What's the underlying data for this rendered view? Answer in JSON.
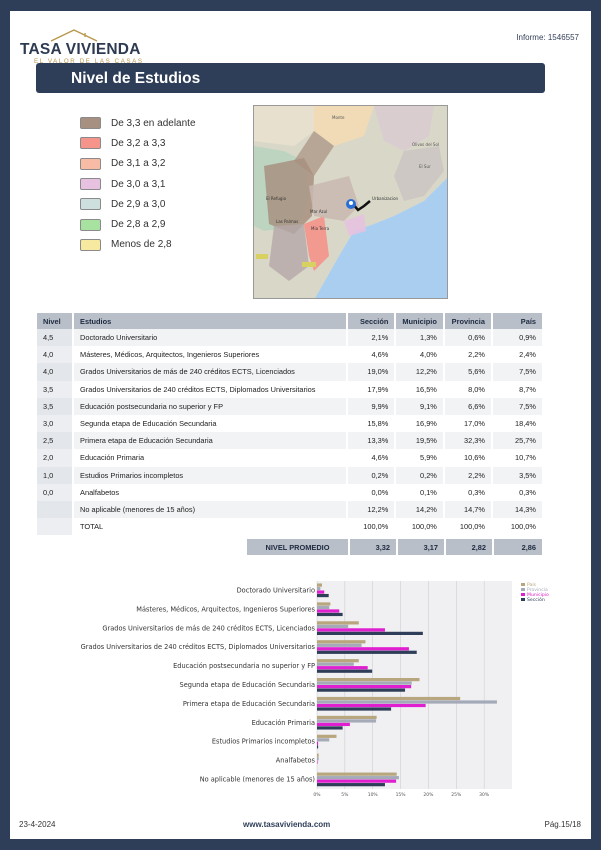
{
  "header": {
    "logo_title": "TASA VIVIENDA",
    "logo_subtitle": "EL VALOR DE LAS CASAS",
    "report_id": "Informe: 1546557",
    "section_title": "Nivel de Estudios"
  },
  "legend": [
    {
      "label": "De 3,3 en adelante",
      "color": "#a89080"
    },
    {
      "label": "De 3,2 a 3,3",
      "color": "#f4948a"
    },
    {
      "label": "De 3,1 a 3,2",
      "color": "#f8bca6"
    },
    {
      "label": "De 3,0 a 3,1",
      "color": "#e6c2e0"
    },
    {
      "label": "De 2,9 a 3,0",
      "color": "#cde0de"
    },
    {
      "label": "De 2,8 a 2,9",
      "color": "#a8e2a0"
    },
    {
      "label": "Menos de 2,8",
      "color": "#f7e9a0"
    }
  ],
  "map": {
    "labels": [
      "Monte",
      "Olivos del Sol",
      "El Sur",
      "El Refugio",
      "Urbanizacion Torre Bermeja",
      "Las Palmas",
      "Mar Azul",
      "Mia Terra Forma",
      "El Sol"
    ]
  },
  "table": {
    "headers": [
      "Nivel",
      "Estudios",
      "Sección",
      "Municipio",
      "Provincia",
      "País"
    ],
    "rows": [
      [
        "4,5",
        "Doctorado Universitario",
        "2,1%",
        "1,3%",
        "0,6%",
        "0,9%"
      ],
      [
        "4,0",
        "Másteres, Médicos, Arquitectos,  Ingenieros Superiores",
        "4,6%",
        "4,0%",
        "2,2%",
        "2,4%"
      ],
      [
        "4,0",
        "Grados Universitarios de más de 240 créditos ECTS, Licenciados",
        "19,0%",
        "12,2%",
        "5,6%",
        "7,5%"
      ],
      [
        "3,5",
        "Grados Universitarios de 240 créditos ECTS, Diplomados Universitarios",
        "17,9%",
        "16,5%",
        "8,0%",
        "8,7%"
      ],
      [
        "3,5",
        "Educación postsecundaria no superior y FP",
        "9,9%",
        "9,1%",
        "6,6%",
        "7,5%"
      ],
      [
        "3,0",
        "Segunda etapa de Educación Secundaria",
        "15,8%",
        "16,9%",
        "17,0%",
        "18,4%"
      ],
      [
        "2,5",
        "Primera etapa de Educación Secundaria",
        "13,3%",
        "19,5%",
        "32,3%",
        "25,7%"
      ],
      [
        "2,0",
        "Educación Primaria",
        "4,6%",
        "5,9%",
        "10,6%",
        "10,7%"
      ],
      [
        "1,0",
        "Estudios Primarios incompletos",
        "0,2%",
        "0,2%",
        "2,2%",
        "3,5%"
      ],
      [
        "0,0",
        "Analfabetos",
        "0,0%",
        "0,1%",
        "0,3%",
        "0,3%"
      ],
      [
        "",
        "No aplicable (menores de 15 años)",
        "12,2%",
        "14,2%",
        "14,7%",
        "14,3%"
      ],
      [
        "",
        "TOTAL",
        "100,0%",
        "100,0%",
        "100,0%",
        "100,0%"
      ]
    ],
    "average": {
      "label": "NIVEL PROMEDIO",
      "values": [
        "3,32",
        "3,17",
        "2,82",
        "2,86"
      ]
    }
  },
  "chart_data": {
    "type": "bar",
    "orientation": "horizontal",
    "categories": [
      "Doctorado Universitario",
      "Másteres, Médicos, Arquitectos,  Ingenieros Superiores",
      "Grados Universitarios de más de 240 créditos ECTS, Licenciados",
      "Grados Universitarios de 240 créditos ECTS, Diplomados Universitarios",
      "Educación postsecundaria no superior y FP",
      "Segunda etapa de Educación Secundaria",
      "Primera etapa de Educación Secundaria",
      "Educación Primaria",
      "Estudios Primarios incompletos",
      "Analfabetos",
      "No aplicable (menores de 15 años)"
    ],
    "series": [
      {
        "name": "País",
        "color": "#b8a67e",
        "values": [
          0.9,
          2.4,
          7.5,
          8.7,
          7.5,
          18.4,
          25.7,
          10.7,
          3.5,
          0.3,
          14.3
        ]
      },
      {
        "name": "Provincia",
        "color": "#a4aab8",
        "values": [
          0.6,
          2.2,
          5.6,
          8.0,
          6.6,
          17.0,
          32.3,
          10.6,
          2.2,
          0.3,
          14.7
        ]
      },
      {
        "name": "Municipio",
        "color": "#e020d0",
        "values": [
          1.3,
          4.0,
          12.2,
          16.5,
          9.1,
          16.9,
          19.5,
          5.9,
          0.2,
          0.1,
          14.2
        ]
      },
      {
        "name": "Sección",
        "color": "#2e3e58",
        "values": [
          2.1,
          4.6,
          19.0,
          17.9,
          9.9,
          15.8,
          13.3,
          4.6,
          0.2,
          0.0,
          12.2
        ]
      }
    ],
    "xticks": [
      "0%",
      "5%",
      "10%",
      "15%",
      "20%",
      "25%",
      "30%"
    ],
    "xlim": [
      0,
      35
    ],
    "grid": true,
    "legend_position": "top-right"
  },
  "footer": {
    "date": "23-4-2024",
    "website": "www.tasavivienda.com",
    "page": "Pág.15/18"
  }
}
